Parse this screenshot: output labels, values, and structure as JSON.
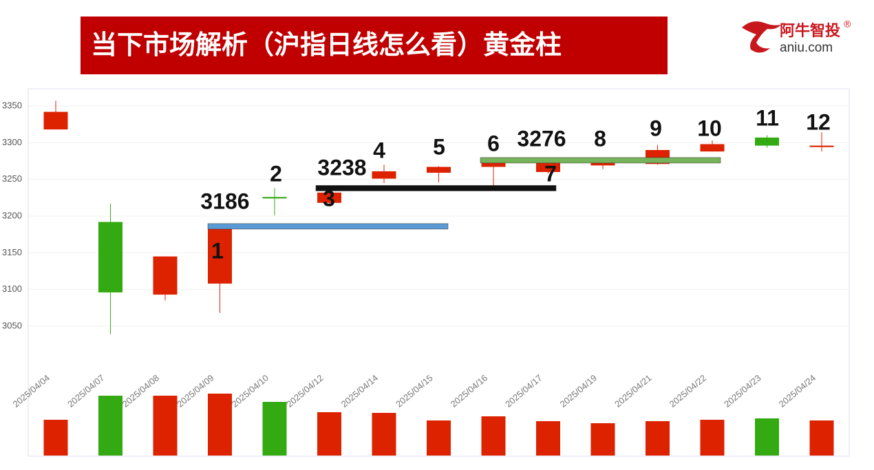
{
  "header": {
    "title": "当下市场解析（沪指日线怎么看）黄金柱",
    "logo_cn": "阿牛智投",
    "logo_mark": "®",
    "logo_en": "aniu.com"
  },
  "chart_data": {
    "type": "candlestick",
    "categories": [
      "2025/04/04",
      "2025/04/07",
      "2025/04/08",
      "2025/04/09",
      "2025/04/10",
      "2025/04/12",
      "2025/04/14",
      "2025/04/15",
      "2025/04/16",
      "2025/04/17",
      "2025/04/19",
      "2025/04/21",
      "2025/04/22",
      "2025/04/23",
      "2025/04/24"
    ],
    "open": [
      3318,
      3192,
      3093,
      3108,
      3226,
      3218,
      3251,
      3259,
      3267,
      3260,
      3269,
      3271,
      3288,
      3307,
      3294
    ],
    "close": [
      3342,
      3096,
      3145,
      3186,
      3224,
      3232,
      3261,
      3267,
      3274,
      3276,
      3276,
      3290,
      3298,
      3296,
      3296
    ],
    "high": [
      3357,
      3217,
      3145,
      3186,
      3238,
      3238,
      3270,
      3268,
      3276,
      3276,
      3279,
      3297,
      3303,
      3310,
      3314
    ],
    "low": [
      3318,
      3039,
      3085,
      3068,
      3201,
      3217,
      3245,
      3246,
      3241,
      3258,
      3264,
      3270,
      3288,
      3293,
      3288
    ],
    "volume": [
      52,
      87,
      87,
      90,
      78,
      63,
      62,
      51,
      57,
      50,
      47,
      50,
      52,
      54,
      51
    ],
    "up_color": "#dd2200",
    "down_color": "#33aa11",
    "ylim": [
      3000,
      3375
    ],
    "yticks": [
      3050,
      3100,
      3150,
      3200,
      3250,
      3300,
      3350
    ],
    "grid": true,
    "levels": [
      {
        "value": 3186,
        "color": "#5b9bd5"
      },
      {
        "value": 3238,
        "color": "#111111"
      },
      {
        "value": 3276,
        "color": "#76b35a"
      }
    ],
    "annotations": [
      "3186",
      "2",
      "3238",
      "3",
      "4",
      "5",
      "6",
      "3276",
      "7",
      "8",
      "9",
      "10",
      "11",
      "12",
      "1"
    ]
  }
}
